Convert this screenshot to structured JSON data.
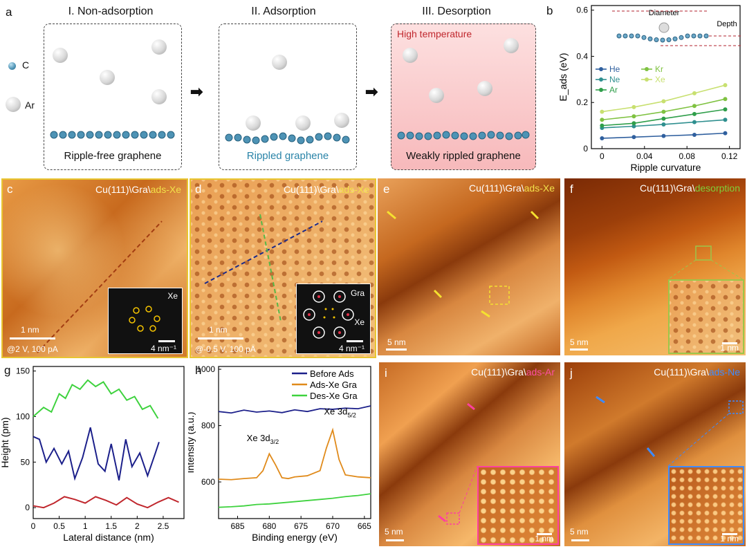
{
  "panels": {
    "a": {
      "label": "a",
      "stages": [
        {
          "title": "I. Non-adsorption",
          "caption": "Ripple-free graphene"
        },
        {
          "title": "II. Adsorption",
          "caption": "Rippled graphene"
        },
        {
          "title": "III. Desorption",
          "caption": "Weakly rippled graphene",
          "note": "High temperature"
        }
      ],
      "legend": {
        "c": "C",
        "ar": "Ar"
      }
    },
    "b": {
      "label": "b"
    },
    "c": {
      "label": "c",
      "title_prefix": "Cu(111)\\Gra\\",
      "title_hl": "ads-Xe",
      "scale": "1 nm",
      "cond": "@2 V, 100 pA",
      "inset_label": "Xe",
      "inset_scale": "4 nm⁻¹"
    },
    "d": {
      "label": "d",
      "title_prefix": "Cu(111)\\Gra\\",
      "title_hl": "ads-Xe",
      "scale": "1 nm",
      "cond": "@-0.5 V, 100 pA",
      "inset_gra": "Gra",
      "inset_xe": "Xe",
      "inset_scale": "4 nm⁻¹"
    },
    "e": {
      "label": "e",
      "title_prefix": "Cu(111)\\Gra\\",
      "title_hl": "ads-Xe",
      "scale": "5 nm"
    },
    "f": {
      "label": "f",
      "title_prefix": "Cu(111)\\Gra\\",
      "title_hl": "desorption",
      "scale": "5 nm",
      "inset_scale": "1 nm"
    },
    "g": {
      "label": "g"
    },
    "h": {
      "label": "h",
      "peak1": "Xe 3d",
      "peak1_sub": "3/2",
      "peak2": "Xe 3d",
      "peak2_sub": "5/2"
    },
    "i": {
      "label": "i",
      "title_prefix": "Cu(111)\\Gra\\",
      "title_hl": "ads-Ar",
      "scale": "5 nm",
      "inset_scale": "1 nm"
    },
    "j": {
      "label": "j",
      "title_prefix": "Cu(111)\\Gra\\",
      "title_hl": "ads-Ne",
      "scale": "5 nm",
      "inset_scale": "1 nm"
    }
  },
  "chart_data": [
    {
      "panel": "b",
      "type": "line",
      "xlabel": "Ripple curvature",
      "ylabel": "E_ads (eV)",
      "xlim": [
        -0.01,
        0.13
      ],
      "ylim": [
        0,
        0.62
      ],
      "xticks": [
        0,
        0.04,
        0.08,
        0.12
      ],
      "yticks": [
        0.0,
        0.2,
        0.4,
        0.6
      ],
      "x": [
        0.0,
        0.03,
        0.058,
        0.087,
        0.116
      ],
      "series": [
        {
          "name": "He",
          "color": "#2f5f9e",
          "values": [
            0.045,
            0.05,
            0.055,
            0.06,
            0.067
          ]
        },
        {
          "name": "Ne",
          "color": "#2f8f8f",
          "values": [
            0.09,
            0.097,
            0.105,
            0.115,
            0.125
          ]
        },
        {
          "name": "Ar",
          "color": "#2f9e4a",
          "values": [
            0.1,
            0.11,
            0.13,
            0.15,
            0.17
          ]
        },
        {
          "name": "Kr",
          "color": "#7fc241",
          "values": [
            0.125,
            0.14,
            0.16,
            0.185,
            0.215
          ]
        },
        {
          "name": "Xe",
          "color": "#c8e070",
          "values": [
            0.16,
            0.18,
            0.205,
            0.24,
            0.275
          ]
        }
      ],
      "legend_position": "middle-left",
      "inset_labels": {
        "diameter": "Diameter",
        "depth": "Depth"
      }
    },
    {
      "panel": "g",
      "type": "line",
      "xlabel": "Lateral distance (nm)",
      "ylabel": "Height (pm)",
      "xlim": [
        0,
        2.9
      ],
      "ylim": [
        -12,
        155
      ],
      "xticks": [
        0,
        0.5,
        1.0,
        1.5,
        2.0,
        2.5
      ],
      "yticks": [
        0,
        50,
        100,
        150
      ],
      "series": [
        {
          "color": "#3ed23e",
          "x": [
            0,
            0.2,
            0.35,
            0.5,
            0.62,
            0.75,
            0.9,
            1.05,
            1.2,
            1.35,
            1.5,
            1.65,
            1.8,
            1.95,
            2.1,
            2.25,
            2.4
          ],
          "values": [
            100,
            110,
            105,
            125,
            120,
            135,
            130,
            140,
            133,
            138,
            125,
            130,
            118,
            122,
            108,
            112,
            98
          ]
        },
        {
          "color": "#1b1f8a",
          "x": [
            0,
            0.12,
            0.25,
            0.4,
            0.55,
            0.68,
            0.8,
            0.95,
            1.1,
            1.25,
            1.38,
            1.5,
            1.65,
            1.78,
            1.9,
            2.05,
            2.2,
            2.35,
            2.42
          ],
          "values": [
            78,
            75,
            50,
            65,
            48,
            62,
            32,
            55,
            88,
            48,
            40,
            70,
            30,
            75,
            45,
            60,
            35,
            60,
            72
          ]
        },
        {
          "color": "#c0272d",
          "x": [
            0,
            0.2,
            0.4,
            0.6,
            0.8,
            1.0,
            1.2,
            1.4,
            1.6,
            1.8,
            2.0,
            2.2,
            2.4,
            2.6,
            2.8
          ],
          "values": [
            2,
            0,
            5,
            12,
            9,
            5,
            12,
            8,
            3,
            11,
            4,
            0,
            6,
            11,
            6
          ]
        }
      ]
    },
    {
      "panel": "h",
      "type": "line",
      "xlabel": "Binding energy (eV)",
      "ylabel": "Intensity (a.u.)",
      "xlim": [
        688,
        664
      ],
      "ylim": [
        470,
        1010
      ],
      "xticks": [
        685,
        680,
        675,
        670,
        665
      ],
      "yticks": [
        600,
        800,
        1000
      ],
      "legend_position": "top-right",
      "series": [
        {
          "name": "Before Ads",
          "color": "#1b1f8a",
          "x": [
            688,
            686,
            684,
            682,
            680,
            678,
            676,
            674,
            672,
            670,
            668,
            666,
            664
          ],
          "values": [
            850,
            845,
            855,
            848,
            852,
            846,
            856,
            850,
            860,
            858,
            862,
            860,
            870
          ]
        },
        {
          "name": "Ads-Xe Gra",
          "color": "#e08a1a",
          "x": [
            688,
            686,
            684,
            682,
            681,
            680,
            679,
            678,
            677,
            676,
            674,
            672,
            671,
            670,
            669,
            668,
            666,
            664
          ],
          "values": [
            610,
            608,
            612,
            615,
            640,
            700,
            660,
            615,
            612,
            618,
            622,
            640,
            720,
            785,
            680,
            625,
            618,
            615
          ]
        },
        {
          "name": "Des-Xe Gra",
          "color": "#3ed23e",
          "x": [
            688,
            686,
            684,
            682,
            680,
            678,
            676,
            674,
            672,
            670,
            668,
            666,
            664
          ],
          "values": [
            510,
            512,
            515,
            520,
            522,
            526,
            530,
            534,
            538,
            542,
            548,
            552,
            558
          ]
        }
      ]
    }
  ]
}
